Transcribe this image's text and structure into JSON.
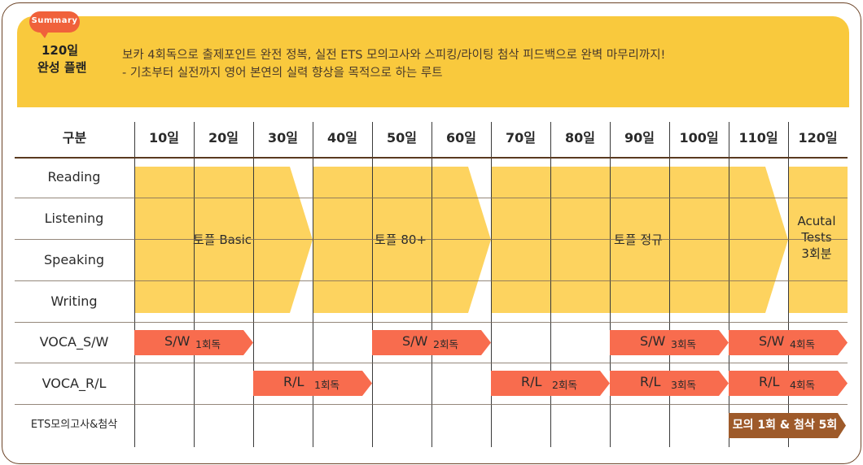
{
  "summary": {
    "badge": "Summary",
    "title_line1": "120일",
    "title_line2": "완성 플랜",
    "desc_line1": "보카 4회독으로 출제포인트 완전 정복, 실전 ETS 모의고사와 스피킹/라이팅 첨삭 피드백으로 완벽 마무리까지!",
    "desc_line2": "- 기초부터 실전까지 영어 본연의 실력 향상을 목적으로 하는 루트"
  },
  "table": {
    "corner": "구분",
    "days": [
      "10일",
      "20일",
      "30일",
      "40일",
      "50일",
      "60일",
      "70일",
      "80일",
      "90일",
      "100일",
      "110일",
      "120일"
    ],
    "rows": [
      "Reading",
      "Listening",
      "Speaking",
      "Writing",
      "VOCA_S/W",
      "VOCA_R/L",
      "ETS모의고사&첨삭"
    ]
  },
  "bands": [
    {
      "label": "토플 Basic",
      "start_col": 0,
      "end_col": 3
    },
    {
      "label": "토플 80+",
      "start_col": 3,
      "end_col": 6
    },
    {
      "label": "토플 정규",
      "start_col": 6,
      "end_col": 11
    },
    {
      "label_lines": [
        "Acutal",
        "Tests",
        "3회분"
      ],
      "start_col": 11,
      "end_col": 12
    }
  ],
  "voca_sw": [
    {
      "main": "S/W",
      "sub": "1회독",
      "start_col": 0,
      "end_col": 2
    },
    {
      "main": "S/W",
      "sub": "2회독",
      "start_col": 4,
      "end_col": 6
    },
    {
      "main": "S/W",
      "sub": "3회독",
      "start_col": 8,
      "end_col": 10
    },
    {
      "main": "S/W",
      "sub": "4회독",
      "start_col": 10,
      "end_col": 12
    }
  ],
  "voca_rl": [
    {
      "main": "R/L",
      "sub": "1회독",
      "start_col": 2,
      "end_col": 4
    },
    {
      "main": "R/L",
      "sub": "2회독",
      "start_col": 6,
      "end_col": 8
    },
    {
      "main": "R/L",
      "sub": "3회독",
      "start_col": 8,
      "end_col": 10
    },
    {
      "main": "R/L",
      "sub": "4회독",
      "start_col": 10,
      "end_col": 12
    }
  ],
  "mock": {
    "label": "모의 1회 & 첨삭 5회",
    "start_col": 10,
    "end_col": 12
  },
  "colors": {
    "band": "#fdd35f",
    "pill": "#f86c4e",
    "mock": "#9e5a2a",
    "summary_bg": "#f9c93d"
  }
}
